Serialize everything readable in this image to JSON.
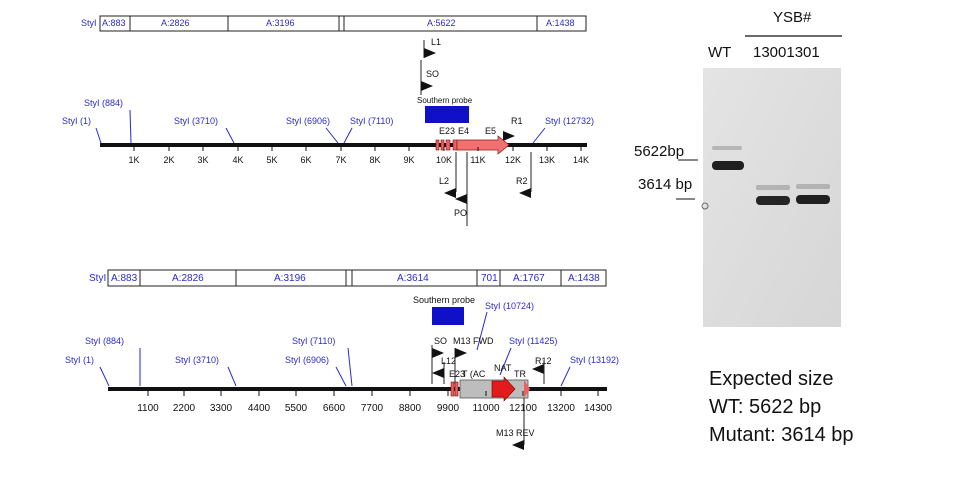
{
  "top_map": {
    "fragment_prefix": "StyI",
    "fragments": [
      "A:883",
      "A:2826",
      "A:3196",
      "A:5622",
      "A:1438"
    ],
    "sites": [
      "StyI (1)",
      "StyI (884)",
      "StyI (3710)",
      "StyI (6906)",
      "StyI (7110)",
      "StyI (12732)"
    ],
    "ticks": [
      "1K",
      "2K",
      "3K",
      "4K",
      "5K",
      "6K",
      "7K",
      "8K",
      "9K",
      "10K",
      "11K",
      "12K",
      "13K",
      "14K"
    ],
    "probe_label": "Southern probe",
    "primers": {
      "l1": "L1",
      "so": "SO",
      "l2": "L2",
      "po": "PO",
      "r1": "R1",
      "r2": "R2"
    },
    "exons": {
      "e23": "E23",
      "e4": "E4",
      "e5": "E5"
    }
  },
  "bottom_map": {
    "fragment_prefix": "StyI",
    "fragments": [
      "A:883",
      "A:2826",
      "A:3196",
      "A:3614",
      "701",
      "A:1767",
      "A:1438"
    ],
    "sites": [
      "StyI (1)",
      "StyI (884)",
      "StyI (3710)",
      "StyI (6906)",
      "StyI (7110)",
      "StyI (10724)",
      "StyI (11425)",
      "StyI (13192)"
    ],
    "ticks": [
      "1100",
      "2200",
      "3300",
      "4400",
      "5500",
      "6600",
      "7700",
      "8800",
      "9900",
      "11000",
      "12100",
      "13200",
      "14300"
    ],
    "probe_label": "Southern probe",
    "primers": {
      "so": "SO",
      "l12": "L12",
      "m13fwd": "M13 FWD",
      "m13rev": "M13 REV",
      "r12": "R12"
    },
    "features": {
      "e23": "E23",
      "ac": "T (AC",
      "nat": "NAT",
      "tr": "TR"
    }
  },
  "gel": {
    "group_label": "YSB#",
    "wt_label": "WT",
    "samples_label": "13001301",
    "marker_high": "5622bp",
    "marker_low": "3614 bp"
  },
  "expected": {
    "title": "Expected size",
    "wt": "WT: 5622 bp",
    "mutant": "Mutant: 3614 bp"
  },
  "colors": {
    "blue_text": "#2a2ad0",
    "probe": "#1010c8",
    "exon": "#f06060",
    "arrow_red": "#e21b1b",
    "cassette_gray": "#bdbdbd"
  }
}
